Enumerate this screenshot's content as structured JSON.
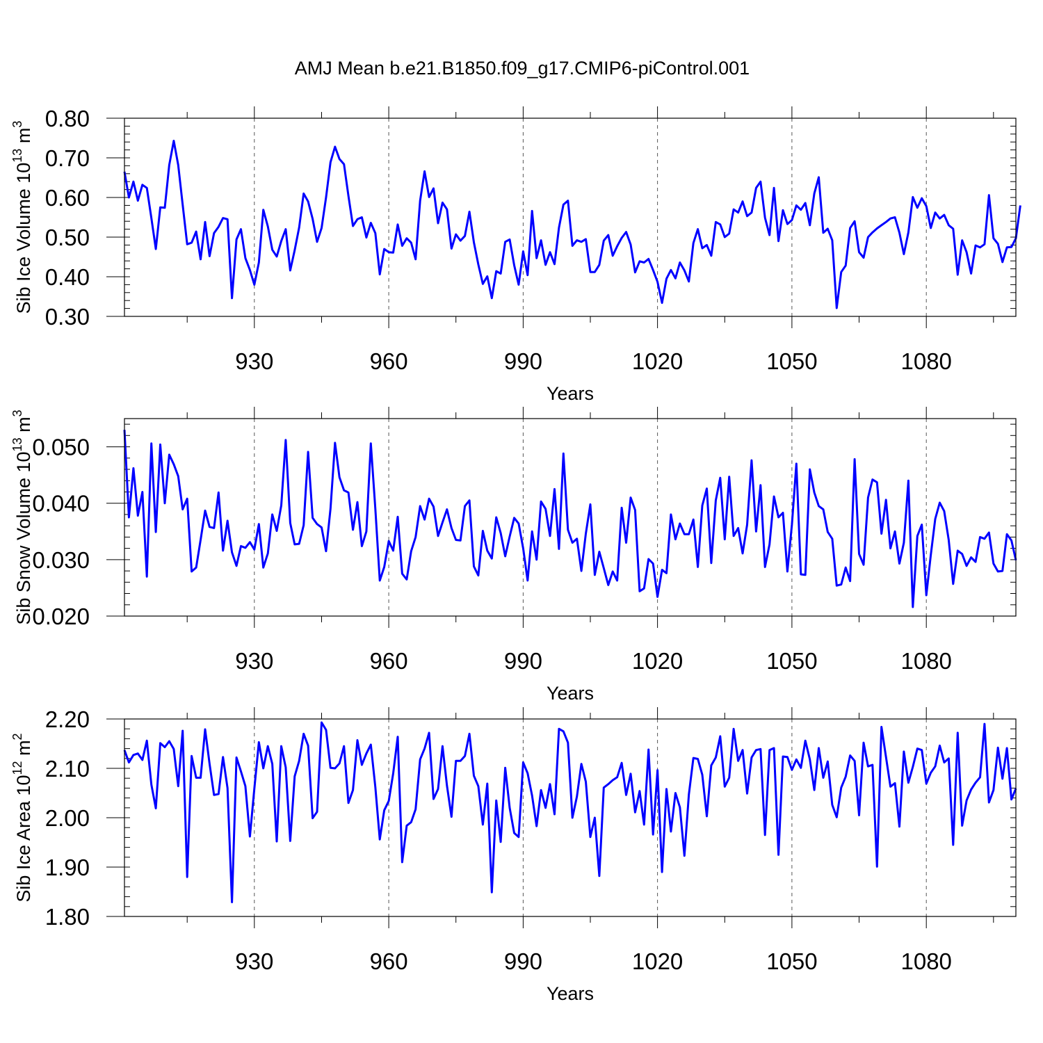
{
  "title": "AMJ Mean b.e21.B1850.f09_g17.CMIP6-piControl.001",
  "colors": {
    "line": "#0000ff",
    "axis": "#000000",
    "grid": "#555555"
  },
  "chart_data": [
    {
      "type": "line",
      "ylabel_base": "Sib Ice Volume 10",
      "ylabel_exp": "13",
      "ylabel_unit": " m",
      "ylabel_unit_exp": "3",
      "xlabel": "Years",
      "xlim": [
        901,
        1100
      ],
      "ylim": [
        0.3,
        0.8
      ],
      "x_ticks": [
        930,
        960,
        990,
        1020,
        1050,
        1080
      ],
      "x_tick_labels": [
        "930",
        "960",
        "990",
        "1020",
        "1050",
        "1080"
      ],
      "y_ticks": [
        0.3,
        0.4,
        0.5,
        0.6,
        0.7,
        0.8
      ],
      "y_tick_labels": [
        "0.30",
        "0.40",
        "0.50",
        "0.60",
        "0.70",
        "0.80"
      ],
      "y_minor_step": 0.02,
      "x_start": 901,
      "values": [
        0.665,
        0.6,
        0.64,
        0.592,
        0.632,
        0.624,
        0.548,
        0.47,
        0.575,
        0.574,
        0.682,
        0.743,
        0.682,
        0.582,
        0.482,
        0.486,
        0.514,
        0.444,
        0.538,
        0.452,
        0.51,
        0.526,
        0.548,
        0.545,
        0.346,
        0.494,
        0.52,
        0.447,
        0.417,
        0.38,
        0.436,
        0.569,
        0.527,
        0.468,
        0.451,
        0.49,
        0.52,
        0.416,
        0.467,
        0.524,
        0.61,
        0.59,
        0.546,
        0.488,
        0.523,
        0.6,
        0.689,
        0.728,
        0.697,
        0.684,
        0.604,
        0.528,
        0.545,
        0.55,
        0.499,
        0.536,
        0.51,
        0.406,
        0.47,
        0.462,
        0.461,
        0.532,
        0.478,
        0.497,
        0.486,
        0.444,
        0.592,
        0.666,
        0.601,
        0.623,
        0.535,
        0.587,
        0.57,
        0.471,
        0.507,
        0.491,
        0.503,
        0.564,
        0.487,
        0.431,
        0.382,
        0.401,
        0.346,
        0.414,
        0.408,
        0.488,
        0.494,
        0.429,
        0.38,
        0.464,
        0.404,
        0.566,
        0.447,
        0.492,
        0.43,
        0.462,
        0.432,
        0.524,
        0.582,
        0.592,
        0.478,
        0.492,
        0.488,
        0.495,
        0.412,
        0.412,
        0.43,
        0.491,
        0.505,
        0.453,
        0.477,
        0.498,
        0.513,
        0.481,
        0.411,
        0.439,
        0.436,
        0.445,
        0.417,
        0.387,
        0.334,
        0.395,
        0.417,
        0.396,
        0.436,
        0.416,
        0.388,
        0.485,
        0.52,
        0.472,
        0.48,
        0.453,
        0.538,
        0.532,
        0.5,
        0.509,
        0.57,
        0.562,
        0.59,
        0.553,
        0.562,
        0.624,
        0.64,
        0.549,
        0.505,
        0.624,
        0.49,
        0.568,
        0.533,
        0.543,
        0.58,
        0.569,
        0.586,
        0.53,
        0.61,
        0.651,
        0.511,
        0.521,
        0.492,
        0.321,
        0.412,
        0.428,
        0.523,
        0.54,
        0.462,
        0.448,
        0.5,
        0.512,
        0.522,
        0.53,
        0.538,
        0.547,
        0.55,
        0.511,
        0.457,
        0.512,
        0.601,
        0.574,
        0.598,
        0.578,
        0.523,
        0.562,
        0.547,
        0.556,
        0.53,
        0.521,
        0.405,
        0.492,
        0.462,
        0.408,
        0.479,
        0.474,
        0.482,
        0.606,
        0.497,
        0.483,
        0.437,
        0.474,
        0.475,
        0.497,
        0.58
      ]
    },
    {
      "type": "line",
      "ylabel_base": "Sib Snow Volume 10",
      "ylabel_exp": "13",
      "ylabel_unit": " m",
      "ylabel_unit_exp": "3",
      "xlabel": "Years",
      "xlim": [
        901,
        1100
      ],
      "ylim": [
        0.02,
        0.055
      ],
      "x_ticks": [
        930,
        960,
        990,
        1020,
        1050,
        1080
      ],
      "x_tick_labels": [
        "930",
        "960",
        "990",
        "1020",
        "1050",
        "1080"
      ],
      "y_ticks": [
        0.02,
        0.03,
        0.04,
        0.05
      ],
      "y_tick_labels": [
        "0.020",
        "0.030",
        "0.040",
        "0.050"
      ],
      "y_minor_step": 0.002,
      "x_start": 901,
      "values": [
        0.053,
        0.0375,
        0.0462,
        0.0378,
        0.042,
        0.027,
        0.0506,
        0.0349,
        0.0504,
        0.04,
        0.0486,
        0.0469,
        0.0448,
        0.0389,
        0.0408,
        0.0279,
        0.0286,
        0.0335,
        0.0387,
        0.0358,
        0.0356,
        0.0419,
        0.0316,
        0.0369,
        0.0313,
        0.0289,
        0.0324,
        0.0321,
        0.0331,
        0.0318,
        0.0363,
        0.0286,
        0.0311,
        0.038,
        0.0351,
        0.0396,
        0.0512,
        0.0365,
        0.0327,
        0.0328,
        0.0361,
        0.0491,
        0.0374,
        0.0363,
        0.0357,
        0.0315,
        0.039,
        0.0507,
        0.0446,
        0.0423,
        0.0419,
        0.0353,
        0.0402,
        0.0324,
        0.035,
        0.0506,
        0.039,
        0.0263,
        0.0287,
        0.0333,
        0.0316,
        0.0376,
        0.0275,
        0.0265,
        0.0315,
        0.034,
        0.0395,
        0.0371,
        0.0408,
        0.0394,
        0.0342,
        0.0366,
        0.0389,
        0.0356,
        0.0335,
        0.0334,
        0.0395,
        0.0405,
        0.0288,
        0.0272,
        0.0351,
        0.0316,
        0.0302,
        0.0375,
        0.0347,
        0.0306,
        0.0341,
        0.0374,
        0.0364,
        0.032,
        0.0263,
        0.035,
        0.03,
        0.0403,
        0.039,
        0.0342,
        0.0425,
        0.0319,
        0.0488,
        0.0353,
        0.033,
        0.0337,
        0.028,
        0.0346,
        0.0398,
        0.0273,
        0.0314,
        0.0285,
        0.0255,
        0.0279,
        0.0263,
        0.0392,
        0.033,
        0.041,
        0.0388,
        0.0244,
        0.0249,
        0.0301,
        0.0293,
        0.0234,
        0.0282,
        0.0276,
        0.038,
        0.0336,
        0.0364,
        0.0345,
        0.0345,
        0.0371,
        0.0287,
        0.0396,
        0.0426,
        0.0294,
        0.0405,
        0.0445,
        0.0336,
        0.0447,
        0.0342,
        0.0356,
        0.0311,
        0.0362,
        0.0476,
        0.035,
        0.0432,
        0.0287,
        0.0327,
        0.0412,
        0.0375,
        0.0383,
        0.0279,
        0.0362,
        0.047,
        0.0274,
        0.0273,
        0.046,
        0.0419,
        0.0395,
        0.0389,
        0.0349,
        0.0337,
        0.0254,
        0.0256,
        0.0286,
        0.0262,
        0.0478,
        0.031,
        0.0291,
        0.041,
        0.0442,
        0.0437,
        0.0346,
        0.0406,
        0.032,
        0.035,
        0.0293,
        0.033,
        0.044,
        0.0216,
        0.0342,
        0.0362,
        0.0237,
        0.0308,
        0.0372,
        0.0401,
        0.0386,
        0.0335,
        0.0257,
        0.0316,
        0.031,
        0.0289,
        0.0304,
        0.0296,
        0.034,
        0.0337,
        0.0348,
        0.0293,
        0.0279,
        0.028,
        0.0345,
        0.0334,
        0.0299
      ]
    },
    {
      "type": "line",
      "ylabel_base": "Sib Ice Area 10",
      "ylabel_exp": "12",
      "ylabel_unit": " m",
      "ylabel_unit_exp": "2",
      "xlabel": "Years",
      "xlim": [
        901,
        1100
      ],
      "ylim": [
        1.8,
        2.2
      ],
      "x_ticks": [
        930,
        960,
        990,
        1020,
        1050,
        1080
      ],
      "x_tick_labels": [
        "930",
        "960",
        "990",
        "1020",
        "1050",
        "1080"
      ],
      "y_ticks": [
        1.8,
        1.9,
        2.0,
        2.1,
        2.2
      ],
      "y_tick_labels": [
        "1.80",
        "1.90",
        "2.00",
        "2.10",
        "2.20"
      ],
      "y_minor_step": 0.02,
      "x_start": 901,
      "values": [
        2.137,
        2.112,
        2.127,
        2.13,
        2.117,
        2.156,
        2.067,
        2.019,
        2.151,
        2.143,
        2.155,
        2.139,
        2.064,
        2.176,
        1.88,
        2.125,
        2.081,
        2.081,
        2.179,
        2.109,
        2.046,
        2.048,
        2.123,
        2.06,
        1.829,
        2.122,
        2.094,
        2.064,
        1.962,
        2.059,
        2.153,
        2.1,
        2.145,
        2.109,
        1.952,
        2.145,
        2.102,
        1.953,
        2.084,
        2.115,
        2.17,
        2.146,
        1.999,
        2.012,
        2.193,
        2.178,
        2.101,
        2.1,
        2.11,
        2.145,
        2.03,
        2.056,
        2.157,
        2.107,
        2.13,
        2.148,
        2.062,
        1.956,
        2.015,
        2.034,
        2.09,
        2.164,
        1.91,
        1.984,
        1.991,
        2.017,
        2.118,
        2.14,
        2.172,
        2.038,
        2.058,
        2.145,
        2.065,
        2.002,
        2.115,
        2.115,
        2.125,
        2.17,
        2.085,
        2.064,
        1.986,
        2.069,
        1.849,
        2.035,
        1.951,
        2.101,
        2.02,
        1.969,
        1.961,
        2.112,
        2.09,
        2.045,
        1.983,
        2.056,
        2.02,
        2.068,
        2.007,
        2.18,
        2.175,
        2.152,
        2.0,
        2.043,
        2.109,
        2.073,
        1.961,
        2.0,
        1.882,
        2.061,
        2.068,
        2.076,
        2.082,
        2.111,
        2.046,
        2.089,
        2.011,
        2.054,
        1.986,
        2.138,
        1.966,
        2.096,
        1.89,
        2.058,
        1.972,
        2.05,
        2.021,
        1.923,
        2.047,
        2.121,
        2.119,
        2.087,
        2.003,
        2.106,
        2.122,
        2.165,
        2.063,
        2.081,
        2.18,
        2.115,
        2.137,
        2.049,
        2.122,
        2.137,
        2.139,
        1.965,
        2.137,
        2.141,
        1.925,
        2.124,
        2.123,
        2.097,
        2.118,
        2.101,
        2.156,
        2.118,
        2.056,
        2.141,
        2.081,
        2.114,
        2.026,
        2.001,
        2.061,
        2.083,
        2.126,
        2.115,
        2.005,
        2.152,
        2.104,
        2.107,
        1.901,
        2.184,
        2.123,
        2.063,
        2.07,
        1.982,
        2.134,
        2.071,
        2.103,
        2.14,
        2.137,
        2.069,
        2.091,
        2.104,
        2.146,
        2.112,
        2.12,
        1.945,
        2.172,
        1.984,
        2.035,
        2.057,
        2.071,
        2.082,
        2.19,
        2.031,
        2.056,
        2.142,
        2.079,
        2.141,
        2.037,
        2.059
      ]
    }
  ]
}
